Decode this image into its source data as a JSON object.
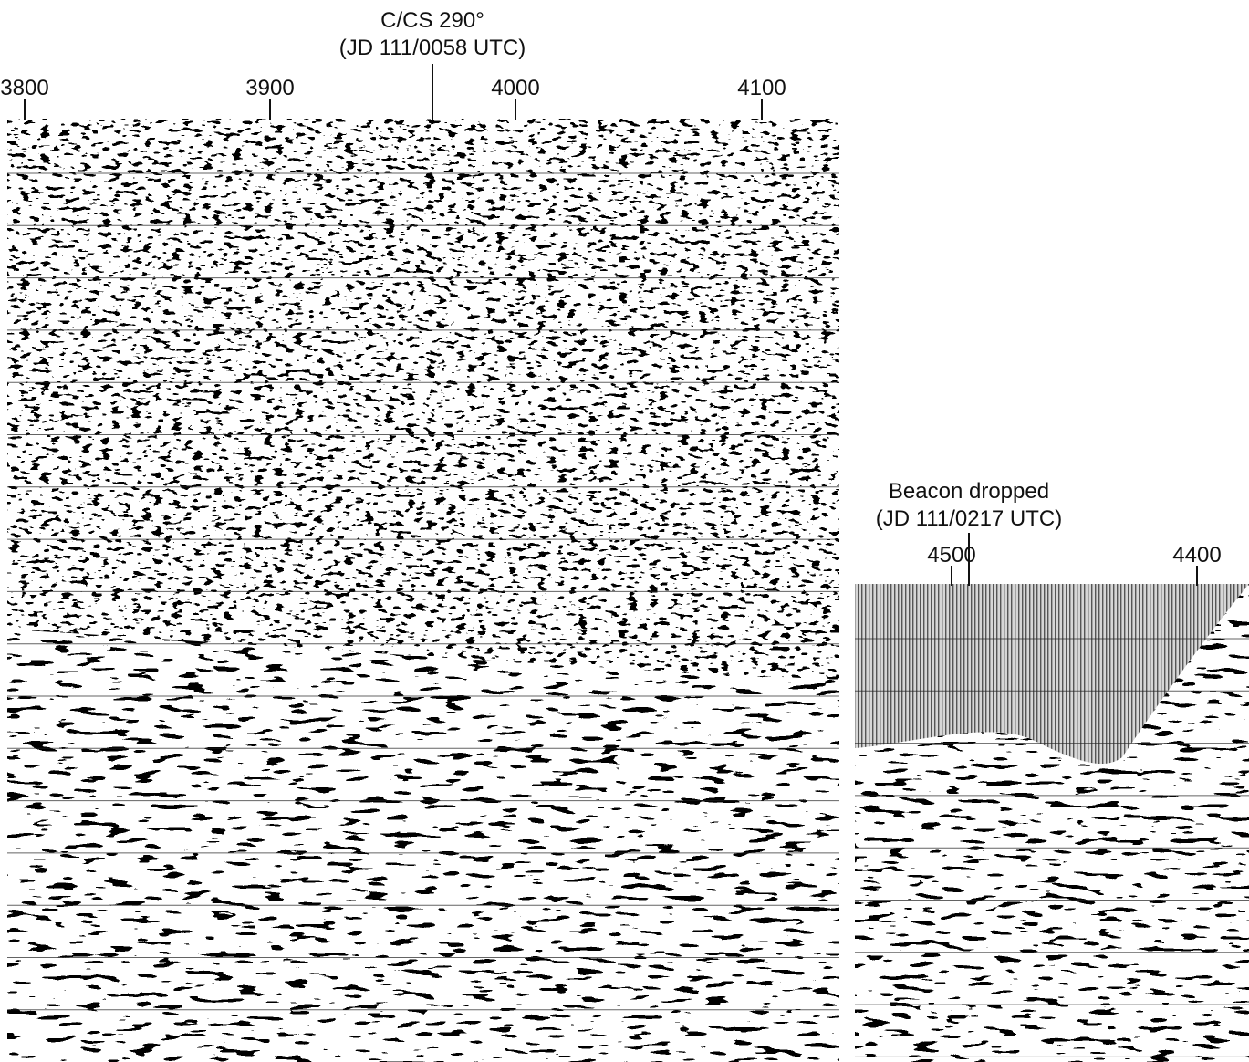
{
  "left_panel": {
    "annotation": [
      "C/CS 290°",
      "(JD 111/0058 UTC)"
    ],
    "ticks": [
      "3800",
      "3900",
      "4000",
      "4100"
    ]
  },
  "right_panel": {
    "annotation": [
      "Beacon dropped",
      "(JD 111/0217 UTC)"
    ],
    "ticks": [
      "4500",
      "4400"
    ]
  }
}
